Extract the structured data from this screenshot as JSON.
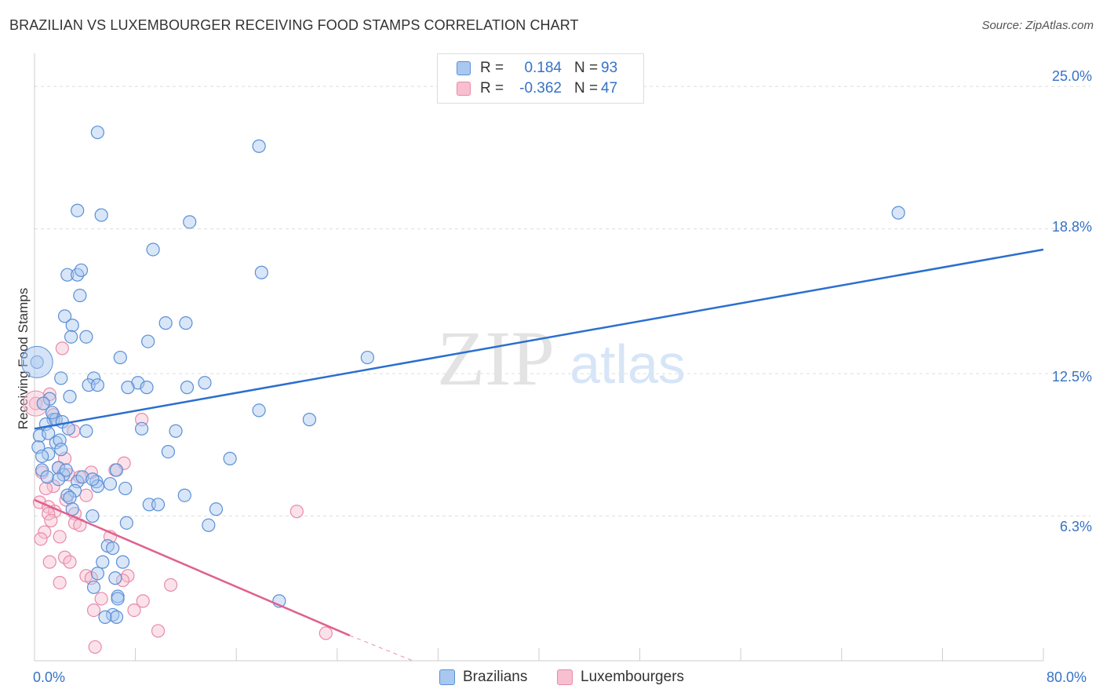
{
  "title": "BRAZILIAN VS LUXEMBOURGER RECEIVING FOOD STAMPS CORRELATION CHART",
  "source": "Source: ZipAtlas.com",
  "watermark": {
    "zip": "ZIP",
    "atlas": "atlas"
  },
  "legend": {
    "rows": [
      {
        "r_label": "R =",
        "r_value": "0.184",
        "n_label": "N =",
        "n_value": "93"
      },
      {
        "r_label": "R =",
        "r_value": "-0.362",
        "n_label": "N =",
        "n_value": "47"
      }
    ]
  },
  "bottom_legend": {
    "series1": "Brazilians",
    "series2": "Luxembourgers"
  },
  "axis_labels": {
    "x_min": "0.0%",
    "x_max": "80.0%",
    "y_ticks": [
      "25.0%",
      "18.8%",
      "12.5%",
      "6.3%"
    ]
  },
  "colors": {
    "blue_fill": "#a9c8f0",
    "blue_stroke": "#5b8fd6",
    "blue_line": "#2a6fcf",
    "pink_fill": "#f7bfd0",
    "pink_stroke": "#e88aa8",
    "pink_line": "#e0608e",
    "tick_text": "#3572c6",
    "grid": "#dddddd"
  },
  "chart_data": {
    "type": "scatter",
    "title": "BRAZILIAN VS LUXEMBOURGER RECEIVING FOOD STAMPS CORRELATION CHART",
    "xlabel": "",
    "ylabel": "Receiving Food Stamps",
    "xlim": [
      0,
      80
    ],
    "ylim": [
      0,
      26.2
    ],
    "y_ticks": [
      6.3,
      12.5,
      18.8,
      25.0
    ],
    "series": [
      {
        "name": "Brazilians",
        "R": 0.184,
        "N": 93,
        "trend": {
          "x": [
            0,
            80
          ],
          "y": [
            10.1,
            17.9
          ]
        },
        "points": [
          [
            5.0,
            23.0
          ],
          [
            17.8,
            22.4
          ],
          [
            3.4,
            19.6
          ],
          [
            5.3,
            19.4
          ],
          [
            12.3,
            19.1
          ],
          [
            9.4,
            17.9
          ],
          [
            18.0,
            16.9
          ],
          [
            2.6,
            16.8
          ],
          [
            3.4,
            16.8
          ],
          [
            3.7,
            17.0
          ],
          [
            3.6,
            15.9
          ],
          [
            2.4,
            15.0
          ],
          [
            3.0,
            14.6
          ],
          [
            10.4,
            14.7
          ],
          [
            12.0,
            14.7
          ],
          [
            4.1,
            14.1
          ],
          [
            2.9,
            14.1
          ],
          [
            9.0,
            13.9
          ],
          [
            26.4,
            13.2
          ],
          [
            6.8,
            13.2
          ],
          [
            2.1,
            12.3
          ],
          [
            4.7,
            12.3
          ],
          [
            4.3,
            12.0
          ],
          [
            5.0,
            12.0
          ],
          [
            8.2,
            12.1
          ],
          [
            7.4,
            11.9
          ],
          [
            8.9,
            11.9
          ],
          [
            12.1,
            11.9
          ],
          [
            13.5,
            12.1
          ],
          [
            1.2,
            11.4
          ],
          [
            2.8,
            11.5
          ],
          [
            0.7,
            11.2
          ],
          [
            17.8,
            10.9
          ],
          [
            21.8,
            10.5
          ],
          [
            1.5,
            10.5
          ],
          [
            0.9,
            10.3
          ],
          [
            1.7,
            10.5
          ],
          [
            2.2,
            10.4
          ],
          [
            0.4,
            9.8
          ],
          [
            1.1,
            9.9
          ],
          [
            4.1,
            10.0
          ],
          [
            8.5,
            10.1
          ],
          [
            11.2,
            10.0
          ],
          [
            1.7,
            9.5
          ],
          [
            2.0,
            9.6
          ],
          [
            2.1,
            9.2
          ],
          [
            0.3,
            9.3
          ],
          [
            1.1,
            9.0
          ],
          [
            0.6,
            8.9
          ],
          [
            10.6,
            9.1
          ],
          [
            15.5,
            8.8
          ],
          [
            1.9,
            8.4
          ],
          [
            2.3,
            8.1
          ],
          [
            6.5,
            8.3
          ],
          [
            0.6,
            8.3
          ],
          [
            1.9,
            7.9
          ],
          [
            3.4,
            7.8
          ],
          [
            4.9,
            7.8
          ],
          [
            5.0,
            7.6
          ],
          [
            6.0,
            7.7
          ],
          [
            7.2,
            7.5
          ],
          [
            3.2,
            7.4
          ],
          [
            2.6,
            7.2
          ],
          [
            11.9,
            7.2
          ],
          [
            2.8,
            7.1
          ],
          [
            3.0,
            6.6
          ],
          [
            9.1,
            6.8
          ],
          [
            9.8,
            6.8
          ],
          [
            14.4,
            6.6
          ],
          [
            4.6,
            6.3
          ],
          [
            7.3,
            6.0
          ],
          [
            13.8,
            5.9
          ],
          [
            5.8,
            5.0
          ],
          [
            6.2,
            4.9
          ],
          [
            5.4,
            4.3
          ],
          [
            7.0,
            4.3
          ],
          [
            5.0,
            3.8
          ],
          [
            6.4,
            3.6
          ],
          [
            4.7,
            3.2
          ],
          [
            6.6,
            2.8
          ],
          [
            6.6,
            2.7
          ],
          [
            19.4,
            2.6
          ],
          [
            6.2,
            2.0
          ],
          [
            6.5,
            1.9
          ],
          [
            5.6,
            1.9
          ],
          [
            0.2,
            13.0
          ],
          [
            68.5,
            19.5
          ],
          [
            1.4,
            10.8
          ],
          [
            2.7,
            10.1
          ],
          [
            1.0,
            8.0
          ],
          [
            3.8,
            8.0
          ],
          [
            4.6,
            7.9
          ],
          [
            2.5,
            8.3
          ]
        ]
      },
      {
        "name": "Luxembourgers",
        "R": -0.362,
        "N": 47,
        "trend": {
          "x": [
            0,
            25
          ],
          "y": [
            7.0,
            1.1
          ]
        },
        "trend_dashed": {
          "x": [
            25,
            30
          ],
          "y": [
            1.1,
            0.0
          ]
        },
        "points": [
          [
            0.1,
            11.2
          ],
          [
            2.2,
            13.6
          ],
          [
            1.2,
            11.6
          ],
          [
            1.5,
            10.7
          ],
          [
            8.5,
            10.5
          ],
          [
            3.1,
            10.0
          ],
          [
            2.4,
            8.8
          ],
          [
            1.9,
            8.4
          ],
          [
            0.6,
            8.2
          ],
          [
            4.5,
            8.2
          ],
          [
            7.1,
            8.6
          ],
          [
            6.4,
            8.3
          ],
          [
            2.7,
            8.1
          ],
          [
            3.6,
            8.0
          ],
          [
            1.5,
            7.6
          ],
          [
            0.9,
            7.5
          ],
          [
            4.1,
            7.2
          ],
          [
            2.5,
            7.0
          ],
          [
            0.4,
            6.9
          ],
          [
            1.1,
            6.7
          ],
          [
            1.6,
            6.5
          ],
          [
            20.8,
            6.5
          ],
          [
            3.2,
            6.4
          ],
          [
            1.1,
            6.4
          ],
          [
            1.3,
            6.1
          ],
          [
            3.2,
            6.0
          ],
          [
            3.6,
            5.9
          ],
          [
            0.8,
            5.6
          ],
          [
            2.0,
            5.4
          ],
          [
            6.0,
            5.4
          ],
          [
            0.5,
            5.3
          ],
          [
            2.4,
            4.5
          ],
          [
            1.2,
            4.3
          ],
          [
            2.8,
            4.3
          ],
          [
            4.1,
            3.7
          ],
          [
            4.5,
            3.6
          ],
          [
            7.4,
            3.7
          ],
          [
            7.0,
            3.5
          ],
          [
            2.0,
            3.4
          ],
          [
            10.8,
            3.3
          ],
          [
            5.3,
            2.7
          ],
          [
            8.6,
            2.6
          ],
          [
            7.9,
            2.2
          ],
          [
            4.7,
            2.2
          ],
          [
            9.8,
            1.3
          ],
          [
            23.1,
            1.2
          ],
          [
            4.8,
            0.6
          ]
        ]
      }
    ]
  }
}
